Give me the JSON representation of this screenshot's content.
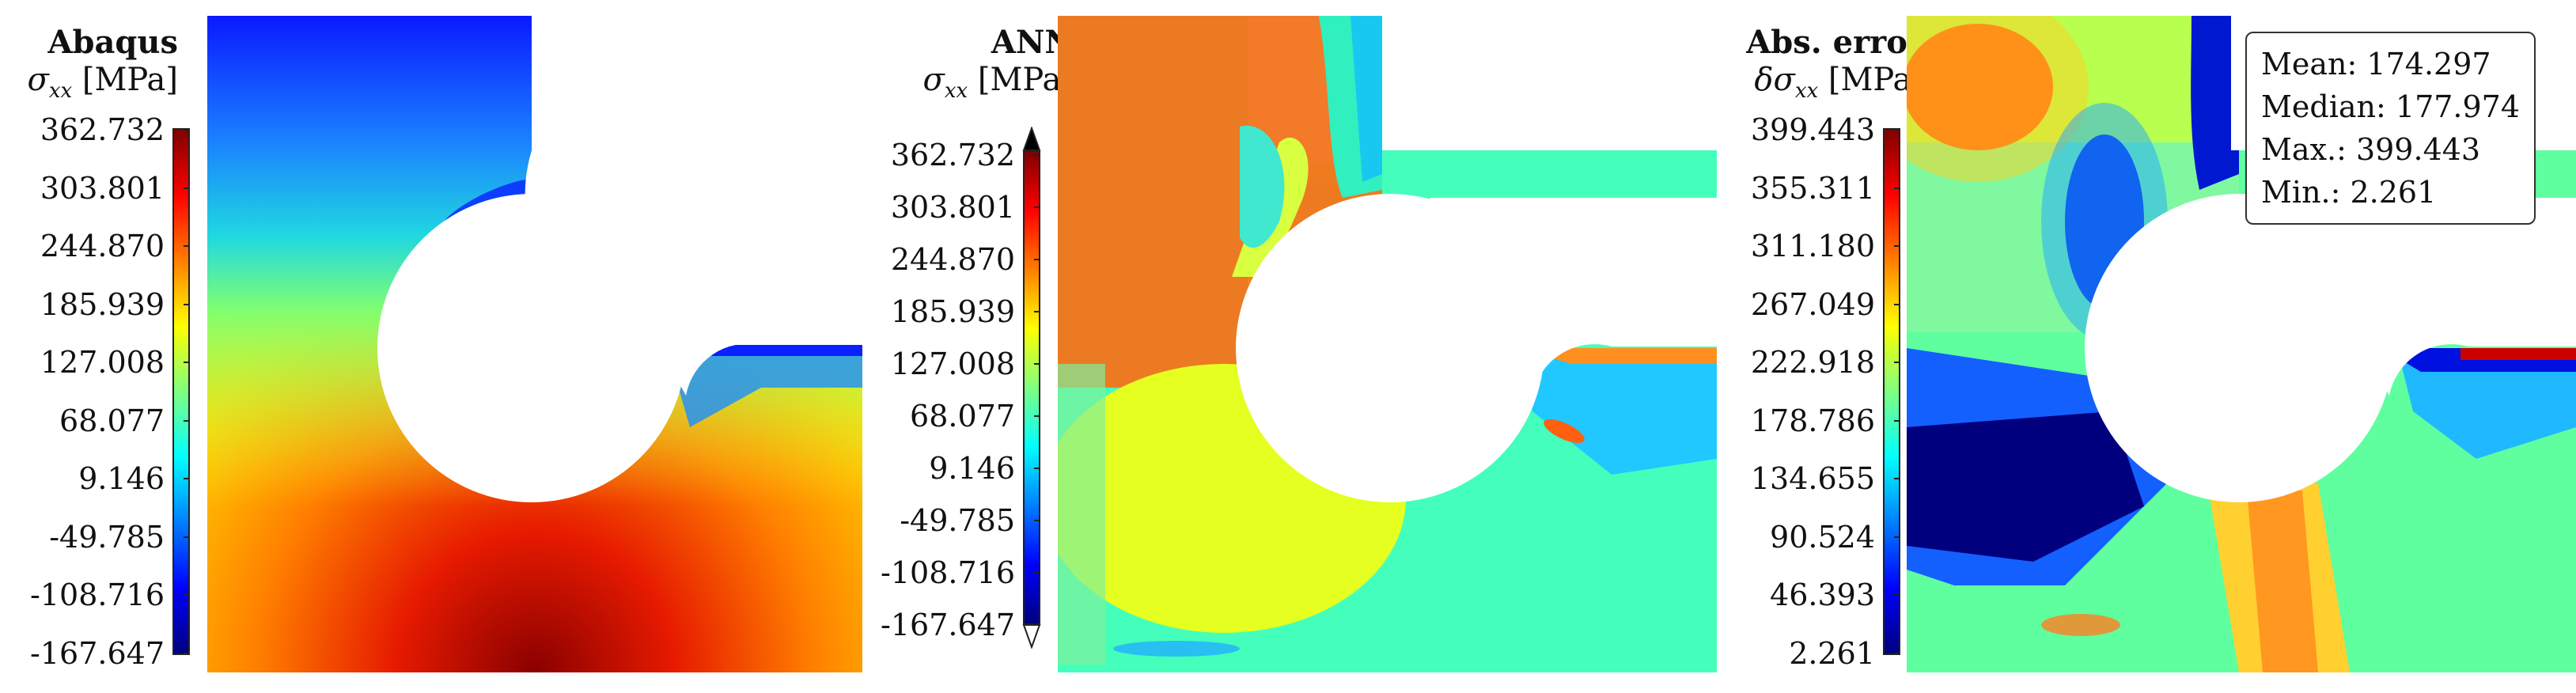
{
  "panels": [
    {
      "title": "Abaqus",
      "quantity_symbol": "σ",
      "quantity_subscript": "xx",
      "unit": "[MPa]",
      "colorbar_ticks": [
        "362.732",
        "303.801",
        "244.870",
        "185.939",
        "127.008",
        "68.077",
        "9.146",
        "-49.785",
        "-108.716",
        "-167.647"
      ]
    },
    {
      "title": "ANN",
      "quantity_symbol": "σ",
      "quantity_subscript": "xx",
      "unit": "[MPa]",
      "colorbar_ticks": [
        "362.732",
        "303.801",
        "244.870",
        "185.939",
        "127.008",
        "68.077",
        "9.146",
        "-49.785",
        "-108.716",
        "-167.647"
      ]
    },
    {
      "title": "Abs. error",
      "quantity_symbol": "δσ",
      "quantity_subscript": "xx",
      "unit": "[MPa]",
      "colorbar_ticks": [
        "399.443",
        "355.311",
        "311.180",
        "267.049",
        "222.918",
        "178.786",
        "134.655",
        "90.524",
        "46.393",
        "2.261"
      ]
    }
  ],
  "error_stats": {
    "mean": "Mean: 174.297",
    "median": "Median: 177.974",
    "max": "Max.: 399.443",
    "min": "Min.: 2.261"
  },
  "colormap": [
    "#00007f",
    "#0000ff",
    "#007fff",
    "#00ffff",
    "#7fff7f",
    "#ffff00",
    "#ff7f00",
    "#ff0000",
    "#7f0000"
  ]
}
